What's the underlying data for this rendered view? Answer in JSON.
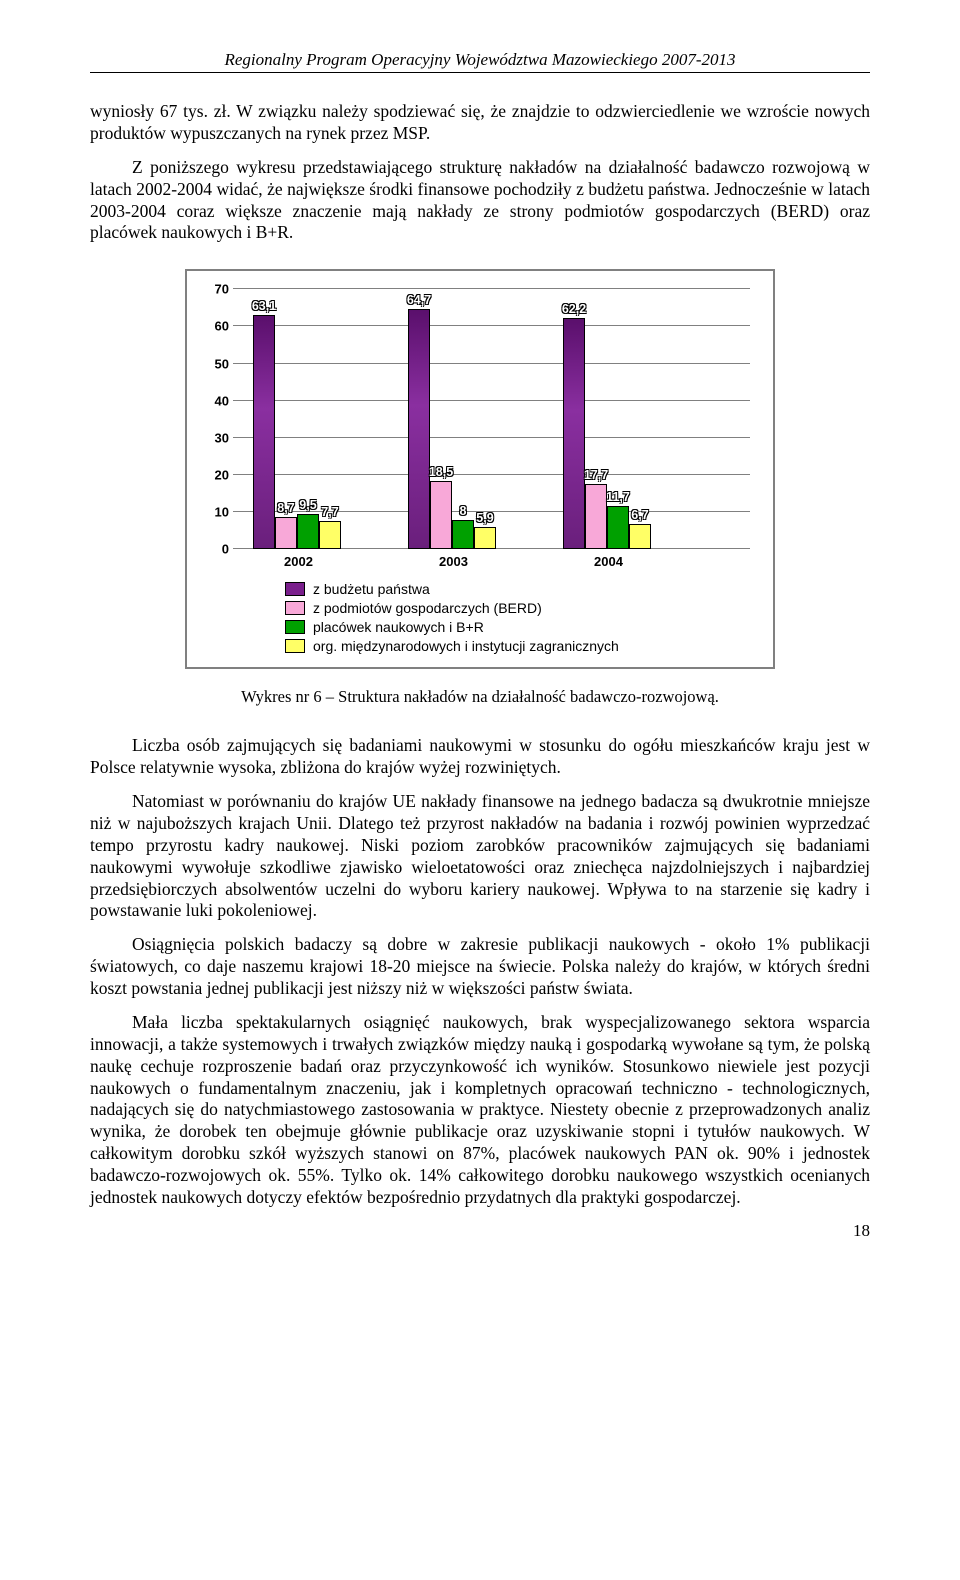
{
  "header": "Regionalny Program Operacyjny Województwa Mazowieckiego 2007-2013",
  "paragraphs": {
    "p1": "wyniosły 67 tys. zł. W związku należy spodziewać się, że znajdzie to odzwierciedlenie we wzroście nowych produktów wypuszczanych na rynek przez MSP.",
    "p2": "Z poniższego wykresu przedstawiającego strukturę nakładów na działalność badawczo rozwojową w latach 2002-2004 widać, że największe środki finansowe pochodziły z budżetu państwa. Jednocześnie w latach 2003-2004 coraz większe znaczenie mają nakłady ze strony podmiotów gospodarczych (BERD) oraz placówek naukowych i B+R.",
    "p3": "Liczba osób zajmujących się badaniami naukowymi w stosunku do ogółu mieszkańców kraju jest w Polsce relatywnie wysoka, zbliżona do krajów wyżej rozwiniętych.",
    "p4": "Natomiast w porównaniu do krajów UE nakłady finansowe na jednego badacza są dwukrotnie mniejsze niż w najuboższych krajach Unii. Dlatego też przyrost nakładów na badania i rozwój powinien wyprzedzać tempo przyrostu kadry naukowej. Niski poziom zarobków pracowników zajmujących się badaniami naukowymi wywołuje szkodliwe zjawisko wieloetatowości oraz zniechęca najzdolniejszych i najbardziej przedsiębiorczych absolwentów uczelni do wyboru kariery naukowej. Wpływa to na starzenie się kadry i powstawanie luki pokoleniowej.",
    "p5": "Osiągnięcia polskich badaczy są dobre w zakresie publikacji naukowych - około 1% publikacji światowych, co daje naszemu krajowi 18-20 miejsce na świecie. Polska należy do krajów, w których średni koszt powstania jednej publikacji jest niższy niż w większości państw świata.",
    "p6": "Mała liczba spektakularnych osiągnięć naukowych, brak wyspecjalizowanego sektora wsparcia innowacji, a także systemowych i trwałych związków między nauką i gospodarką wywołane są tym, że polską naukę cechuje rozproszenie badań oraz przyczynkowość ich wyników. Stosunkowo niewiele jest pozycji naukowych o fundamentalnym znaczeniu, jak i kompletnych opracowań techniczno - technologicznych, nadających się do natychmiastowego zastosowania w praktyce. Niestety obecnie z przeprowadzonych analiz wynika, że dorobek ten obejmuje głównie publikacje oraz uzyskiwanie stopni i tytułów naukowych. W całkowitym dorobku szkół wyższych stanowi on 87%, placówek naukowych PAN ok. 90% i jednostek badawczo-rozwojowych ok. 55%. Tylko ok. 14% całkowitego dorobku naukowego wszystkich ocenianych jednostek naukowych dotyczy efektów bezpośrednio przydatnych dla praktyki gospodarczej."
  },
  "chart": {
    "type": "bar",
    "ylim": [
      0,
      70
    ],
    "ytick_step": 10,
    "yticks": [
      "0",
      "10",
      "20",
      "30",
      "40",
      "50",
      "60",
      "70"
    ],
    "categories": [
      "2002",
      "2003",
      "2004"
    ],
    "series": [
      {
        "name": "z budżetu państwa",
        "color": "#7a1f8c",
        "values": [
          63.1,
          64.7,
          62.2
        ],
        "labels": [
          "63,1",
          "64,7",
          "62,2"
        ]
      },
      {
        "name": "z podmiotów gospodarczych (BERD)",
        "color": "#f8a8d8",
        "values": [
          8.7,
          18.5,
          17.7
        ],
        "labels": [
          "8,7",
          "18,5",
          "17,7"
        ]
      },
      {
        "name": "placówek naukowych i B+R",
        "color": "#00a000",
        "values": [
          9.5,
          8,
          11.7
        ],
        "labels": [
          "9,5",
          "8",
          "11,7"
        ]
      },
      {
        "name": "org. międzynarodowych i instytucji zagranicznych",
        "color": "#ffff66",
        "values": [
          7.7,
          5.9,
          6.7
        ],
        "labels": [
          "7,7",
          "5,9",
          "6,7"
        ]
      }
    ],
    "background_color": "#ffffff",
    "grid_color": "#808080"
  },
  "caption": "Wykres nr 6 – Struktura nakładów na działalność badawczo-rozwojową.",
  "page_number": "18"
}
